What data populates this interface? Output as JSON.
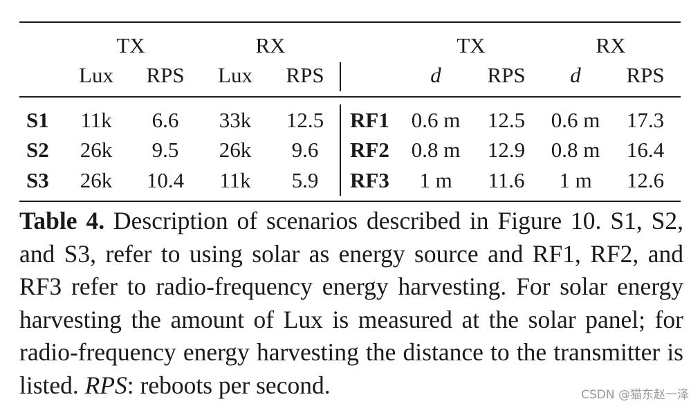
{
  "table": {
    "group_headers": [
      "TX",
      "RX",
      "TX",
      "RX"
    ],
    "sub_headers": [
      "Lux",
      "RPS",
      "Lux",
      "RPS",
      "d",
      "RPS",
      "d",
      "RPS"
    ],
    "rows": [
      {
        "label": "S1",
        "tx_lux": "11k",
        "tx_rps": "6.6",
        "rx_lux": "33k",
        "rx_rps": "12.5",
        "rf_label": "RF1",
        "tx_d": "0.6 m",
        "tx_rps2": "12.5",
        "rx_d": "0.6 m",
        "rx_rps2": "17.3"
      },
      {
        "label": "S2",
        "tx_lux": "26k",
        "tx_rps": "9.5",
        "rx_lux": "26k",
        "rx_rps": "9.6",
        "rf_label": "RF2",
        "tx_d": "0.8 m",
        "tx_rps2": "12.9",
        "rx_d": "0.8 m",
        "rx_rps2": "16.4"
      },
      {
        "label": "S3",
        "tx_lux": "26k",
        "tx_rps": "10.4",
        "rx_lux": "11k",
        "rx_rps": "5.9",
        "rf_label": "RF3",
        "tx_d": "1 m",
        "tx_rps2": "11.6",
        "rx_d": "1 m",
        "rx_rps2": "12.6"
      }
    ]
  },
  "caption": {
    "label": "Table 4.",
    "text_1": " Description of scenarios described in Figure 10. S1, S2, and S3, refer to using solar as energy source and RF1, RF2, and RF3 refer to radio-frequency energy harvesting. For solar energy harvesting the amount of Lux is measured at the solar panel; for radio-frequency energy harvesting the distance to the transmitter is listed. ",
    "rps_term": "RPS",
    "text_2": ": reboots per second."
  },
  "watermark": "CSDN @猫东赵一泽"
}
